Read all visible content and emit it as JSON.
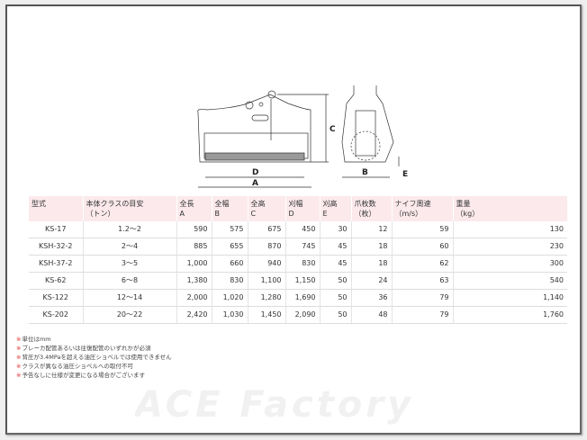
{
  "watermark": "ACE Factory",
  "diagram": {
    "labels": {
      "a": "A",
      "b": "B",
      "c": "C",
      "d": "D",
      "e": "E"
    }
  },
  "table": {
    "headers": [
      {
        "l1": "型式",
        "l2": ""
      },
      {
        "l1": "本体クラスの目安",
        "l2": "（トン）"
      },
      {
        "l1": "全長",
        "l2": "A"
      },
      {
        "l1": "全幅",
        "l2": "B"
      },
      {
        "l1": "全高",
        "l2": "C"
      },
      {
        "l1": "刈幅",
        "l2": "D"
      },
      {
        "l1": "刈高",
        "l2": "E"
      },
      {
        "l1": "爪枚数",
        "l2": "（枚）"
      },
      {
        "l1": "ナイフ周速",
        "l2": "（m/s）"
      },
      {
        "l1": "重量",
        "l2": "（kg）"
      }
    ],
    "rows": [
      [
        "KS-17",
        "1.2～2",
        "590",
        "575",
        "675",
        "450",
        "30",
        "12",
        "59",
        "130"
      ],
      [
        "KSH-32-2",
        "2～4",
        "885",
        "655",
        "870",
        "745",
        "45",
        "18",
        "60",
        "230"
      ],
      [
        "KSH-37-2",
        "3～5",
        "1,000",
        "660",
        "940",
        "830",
        "45",
        "18",
        "62",
        "300"
      ],
      [
        "KS-62",
        "6～8",
        "1,380",
        "830",
        "1,100",
        "1,150",
        "50",
        "24",
        "63",
        "540"
      ],
      [
        "KS-122",
        "12～14",
        "2,000",
        "1,020",
        "1,280",
        "1,690",
        "50",
        "36",
        "79",
        "1,140"
      ],
      [
        "KS-202",
        "20～22",
        "2,420",
        "1,030",
        "1,450",
        "2,090",
        "50",
        "48",
        "79",
        "1,760"
      ]
    ]
  },
  "notes": {
    "marker": "※",
    "items": [
      "単位はmm",
      "ブレーカ配管あるいは往復配管のいずれかが必須",
      "背圧が3.4MPaを超える油圧ショベルでは使用できません",
      "クラスが異なる油圧ショベルへの取付不可",
      "予告なしに仕様が変更になる場合がございます"
    ]
  }
}
